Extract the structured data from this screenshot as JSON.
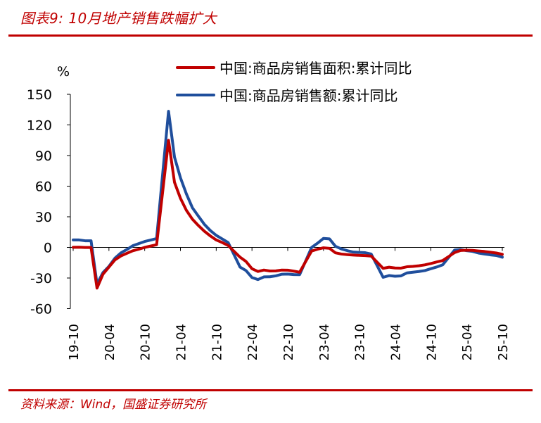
{
  "header": {
    "title": "图表9:  10月地产销售跌幅扩大"
  },
  "footer": {
    "source": "资料来源：Wind，国盛证券研究所"
  },
  "chart_data": {
    "type": "line",
    "title": "",
    "xlabel": "",
    "ylabel": "%",
    "ylim": [
      -60,
      150
    ],
    "yticks": [
      -60,
      -30,
      0,
      30,
      60,
      90,
      120,
      150
    ],
    "x_start": "2019-10",
    "x_end": "2025-10",
    "xtick_labels": [
      "19-10",
      "20-04",
      "20-10",
      "21-04",
      "21-10",
      "22-04",
      "22-10",
      "23-04",
      "23-10",
      "24-04",
      "24-10",
      "25-04",
      "25-10"
    ],
    "legend_position": "top-right",
    "grid": false,
    "x": [
      "2019-10",
      "2019-11",
      "2019-12",
      "2020-01",
      "2020-02",
      "2020-03",
      "2020-04",
      "2020-05",
      "2020-06",
      "2020-07",
      "2020-08",
      "2020-09",
      "2020-10",
      "2020-11",
      "2020-12",
      "2021-01",
      "2021-02",
      "2021-03",
      "2021-04",
      "2021-05",
      "2021-06",
      "2021-07",
      "2021-08",
      "2021-09",
      "2021-10",
      "2021-11",
      "2021-12",
      "2022-01",
      "2022-02",
      "2022-03",
      "2022-04",
      "2022-05",
      "2022-06",
      "2022-07",
      "2022-08",
      "2022-09",
      "2022-10",
      "2022-11",
      "2022-12",
      "2023-01",
      "2023-02",
      "2023-03",
      "2023-04",
      "2023-05",
      "2023-06",
      "2023-07",
      "2023-08",
      "2023-09",
      "2023-10",
      "2023-11",
      "2023-12",
      "2024-01",
      "2024-02",
      "2024-03",
      "2024-04",
      "2024-05",
      "2024-06",
      "2024-07",
      "2024-08",
      "2024-09",
      "2024-10",
      "2024-11",
      "2024-12",
      "2025-01",
      "2025-02",
      "2025-03",
      "2025-04",
      "2025-05",
      "2025-06",
      "2025-07",
      "2025-08",
      "2025-09",
      "2025-10"
    ],
    "series": [
      {
        "name": "中国:商品房销售面积:累计同比",
        "color": "#c00000",
        "values": [
          0.1,
          0.2,
          -0.1,
          -0.1,
          -39.9,
          -26.3,
          -19.3,
          -12.3,
          -8.4,
          -5.8,
          -3.3,
          -1.8,
          0.0,
          1.3,
          2.6,
          null,
          104.9,
          63.8,
          48.1,
          36.3,
          27.7,
          21.5,
          15.9,
          11.3,
          7.3,
          4.8,
          1.9,
          null,
          -9.6,
          -13.8,
          -20.9,
          -23.6,
          -22.2,
          -23.1,
          -23.0,
          -22.2,
          -22.3,
          -23.3,
          -24.3,
          null,
          -3.6,
          -1.8,
          -0.4,
          -0.9,
          -5.3,
          -6.5,
          -7.1,
          -7.5,
          -7.8,
          -8.0,
          -8.5,
          null,
          -20.5,
          -19.4,
          -20.2,
          -20.3,
          -19.0,
          -18.6,
          -18.0,
          -17.1,
          -15.8,
          -14.3,
          -12.9,
          null,
          -5.1,
          -3.0,
          -2.8,
          -2.9,
          -3.5,
          -4.0,
          -4.7,
          -5.5,
          -6.8
        ]
      },
      {
        "name": "中国:商品房销售额:累计同比",
        "color": "#1f4e9c",
        "values": [
          7.3,
          7.3,
          6.5,
          6.5,
          -35.9,
          -24.7,
          -18.6,
          -10.6,
          -5.4,
          -2.1,
          1.6,
          3.7,
          5.8,
          7.2,
          8.7,
          null,
          133.4,
          88.5,
          68.2,
          52.4,
          38.9,
          30.7,
          22.7,
          16.6,
          11.8,
          8.3,
          4.8,
          null,
          -19.3,
          -22.7,
          -29.5,
          -31.5,
          -28.9,
          -28.8,
          -27.9,
          -26.3,
          -26.1,
          -26.6,
          -26.7,
          null,
          -0.1,
          4.1,
          8.8,
          8.4,
          1.1,
          -1.5,
          -3.2,
          -4.6,
          -4.9,
          -5.2,
          -6.5,
          null,
          -29.3,
          -27.6,
          -28.3,
          -27.9,
          -25.0,
          -24.3,
          -23.6,
          -22.7,
          -20.9,
          -19.2,
          -17.1,
          null,
          -2.6,
          -2.1,
          -3.2,
          -3.9,
          -5.5,
          -6.5,
          -7.3,
          -7.9,
          -9.6
        ]
      }
    ]
  }
}
